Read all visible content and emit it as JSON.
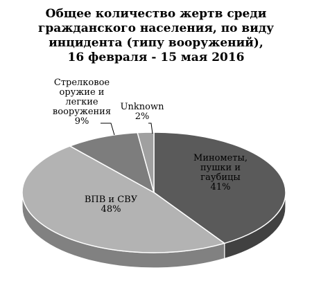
{
  "chart_data": {
    "type": "pie",
    "title_lines": [
      "Общее количество жертв среди",
      "гражданского населения, по виду",
      "инцидента (типу вооружений),",
      "16 февраля - 15 мая 2016"
    ],
    "slices": [
      {
        "label_lines": [
          "Минометы,",
          "пушки и",
          "гаубицы"
        ],
        "percent_label": "41%",
        "value": 41,
        "color": "#5a5a5a"
      },
      {
        "label_lines": [
          "ВПВ и СВУ"
        ],
        "percent_label": "48%",
        "value": 48,
        "color": "#b3b3b3"
      },
      {
        "label_lines": [
          "Стрелковое",
          "оружие и",
          "легкие",
          "вооружения"
        ],
        "percent_label": "9%",
        "value": 9,
        "color": "#7d7d7d"
      },
      {
        "label_lines": [
          "Unknown"
        ],
        "percent_label": "2%",
        "value": 2,
        "color": "#a0a0a0"
      }
    ],
    "style": "3d-pie",
    "legend": "none"
  }
}
